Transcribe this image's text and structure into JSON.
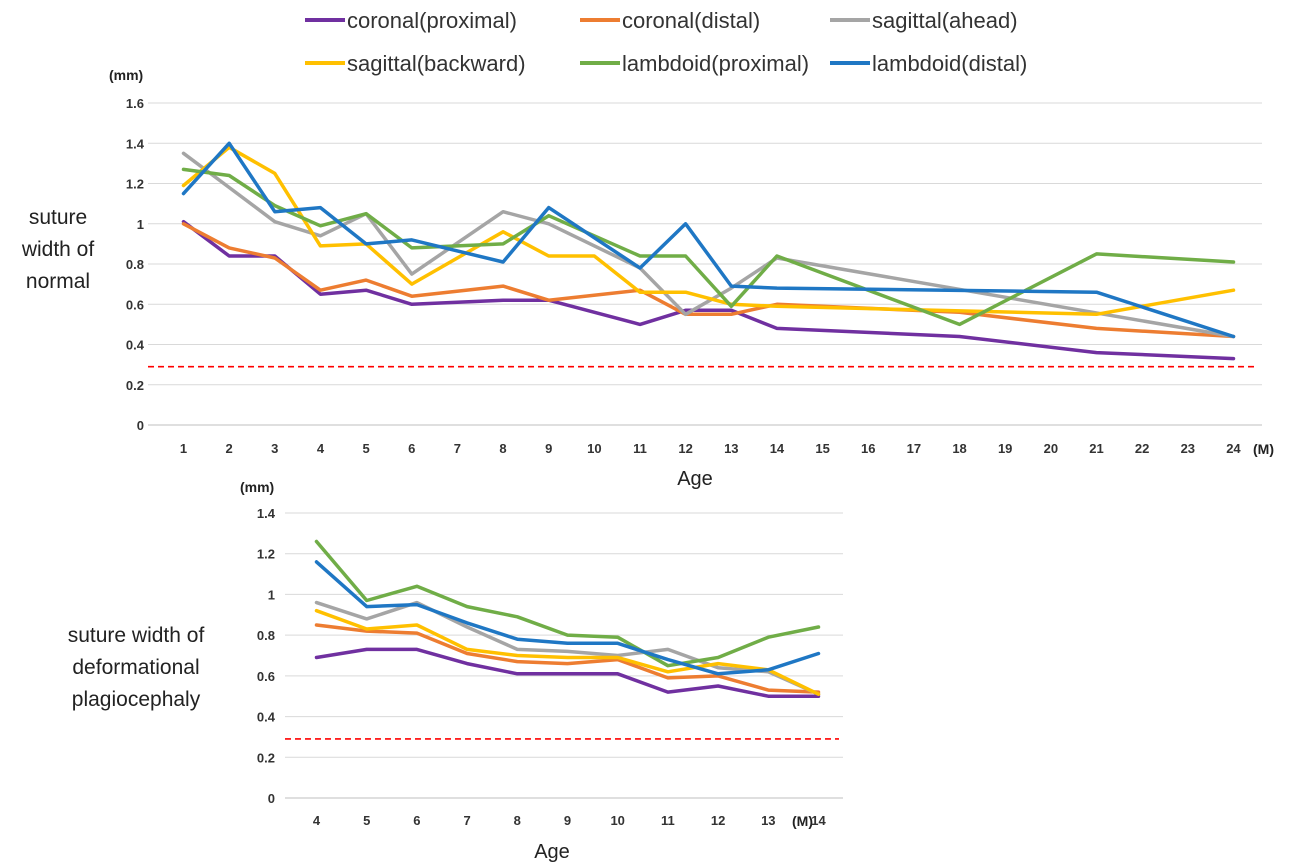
{
  "legend": [
    {
      "name": "coronal(proximal)",
      "color": "#7030A0"
    },
    {
      "name": "coronal(distal)",
      "color": "#ED7D31"
    },
    {
      "name": "sagittal(ahead)",
      "color": "#A5A5A5"
    },
    {
      "name": "sagittal(backward)",
      "color": "#FFC000"
    },
    {
      "name": "lambdoid(proximal)",
      "color": "#70AD47"
    },
    {
      "name": "lambdoid(distal)",
      "color": "#1F77C4"
    }
  ],
  "reference_line_color": "#FF0000",
  "chart_data": [
    {
      "type": "line",
      "side_label": [
        "suture",
        "width of",
        "normal"
      ],
      "ylabel": "(mm)",
      "xlabel": "Age",
      "x_unit": "(M)",
      "x": [
        1,
        2,
        3,
        4,
        5,
        6,
        7,
        8,
        9,
        10,
        11,
        12,
        13,
        14,
        15,
        16,
        17,
        18,
        19,
        20,
        21,
        22,
        23,
        24
      ],
      "ylim": [
        0,
        1.6
      ],
      "yticks": [
        "0",
        "0.2",
        "0.4",
        "0.6",
        "0.8",
        "1",
        "1.2",
        "1.4",
        "1.6"
      ],
      "reference_line": 0.29,
      "series": [
        {
          "name": "coronal(proximal)",
          "x": [
            1,
            2,
            3,
            4,
            5,
            6,
            8,
            9,
            11,
            12,
            13,
            14,
            18,
            21,
            24
          ],
          "values": [
            1.01,
            0.84,
            0.84,
            0.65,
            0.67,
            0.6,
            0.62,
            0.62,
            0.5,
            0.57,
            0.57,
            0.48,
            0.44,
            0.36,
            0.33
          ]
        },
        {
          "name": "coronal(distal)",
          "x": [
            1,
            2,
            3,
            4,
            5,
            6,
            8,
            9,
            11,
            12,
            13,
            14,
            18,
            21,
            24
          ],
          "values": [
            1.0,
            0.88,
            0.83,
            0.67,
            0.72,
            0.64,
            0.69,
            0.62,
            0.67,
            0.55,
            0.55,
            0.6,
            0.56,
            0.48,
            0.44
          ]
        },
        {
          "name": "sagittal(ahead)",
          "x": [
            1,
            2,
            3,
            4,
            5,
            6,
            8,
            9,
            11,
            12,
            13,
            14,
            24
          ],
          "values": [
            1.35,
            1.18,
            1.01,
            0.94,
            1.05,
            0.75,
            1.06,
            1.0,
            0.78,
            0.55,
            0.68,
            0.83,
            0.44
          ]
        },
        {
          "name": "sagittal(backward)",
          "x": [
            1,
            2,
            3,
            4,
            5,
            6,
            8,
            9,
            10,
            11,
            12,
            13,
            14,
            21,
            24
          ],
          "values": [
            1.19,
            1.38,
            1.25,
            0.89,
            0.9,
            0.7,
            0.96,
            0.84,
            0.84,
            0.66,
            0.66,
            0.6,
            0.59,
            0.55,
            0.67
          ]
        },
        {
          "name": "lambdoid(proximal)",
          "x": [
            1,
            2,
            3,
            4,
            5,
            6,
            8,
            9,
            11,
            12,
            13,
            14,
            18,
            21,
            24
          ],
          "values": [
            1.27,
            1.24,
            1.09,
            0.99,
            1.05,
            0.88,
            0.9,
            1.04,
            0.84,
            0.84,
            0.59,
            0.84,
            0.5,
            0.85,
            0.81
          ]
        },
        {
          "name": "lambdoid(distal)",
          "x": [
            1,
            2,
            3,
            4,
            5,
            6,
            8,
            9,
            11,
            12,
            13,
            14,
            21,
            24
          ],
          "values": [
            1.15,
            1.4,
            1.06,
            1.08,
            0.9,
            0.92,
            0.81,
            1.08,
            0.78,
            1.0,
            0.69,
            0.68,
            0.66,
            0.44
          ]
        }
      ]
    },
    {
      "type": "line",
      "side_label": [
        "suture width of",
        "deformational",
        "plagiocephaly"
      ],
      "ylabel": "(mm)",
      "xlabel": "Age",
      "x_unit": "(M)",
      "x": [
        4,
        5,
        6,
        7,
        8,
        9,
        10,
        11,
        12,
        13,
        14
      ],
      "x_tick_labels": [
        "4",
        "5",
        "6",
        "7",
        "8",
        "9",
        "10",
        "11",
        "12",
        "13",
        "14"
      ],
      "ylim": [
        0,
        1.4
      ],
      "yticks": [
        "0",
        "0.2",
        "0.4",
        "0.6",
        "0.8",
        "1",
        "1.2",
        "1.4"
      ],
      "reference_line": 0.29,
      "series": [
        {
          "name": "coronal(proximal)",
          "values": [
            0.69,
            0.73,
            0.73,
            0.66,
            0.61,
            0.61,
            0.61,
            0.52,
            0.55,
            0.5,
            0.5
          ]
        },
        {
          "name": "coronal(distal)",
          "values": [
            0.85,
            0.82,
            0.81,
            0.71,
            0.67,
            0.66,
            0.68,
            0.59,
            0.6,
            0.53,
            0.52
          ]
        },
        {
          "name": "sagittal(ahead)",
          "values": [
            0.96,
            0.88,
            0.96,
            0.84,
            0.73,
            0.72,
            0.7,
            0.73,
            0.64,
            0.62,
            0.51
          ]
        },
        {
          "name": "sagittal(backward)",
          "values": [
            0.92,
            0.83,
            0.85,
            0.73,
            0.7,
            0.69,
            0.69,
            0.62,
            0.66,
            0.63,
            0.51
          ]
        },
        {
          "name": "lambdoid(proximal)",
          "values": [
            1.26,
            0.97,
            1.04,
            0.94,
            0.89,
            0.8,
            0.79,
            0.65,
            0.69,
            0.79,
            0.84
          ]
        },
        {
          "name": "lambdoid(distal)",
          "values": [
            1.16,
            0.94,
            0.95,
            0.86,
            0.78,
            0.76,
            0.76,
            0.68,
            0.61,
            0.63,
            0.71
          ]
        }
      ]
    }
  ]
}
